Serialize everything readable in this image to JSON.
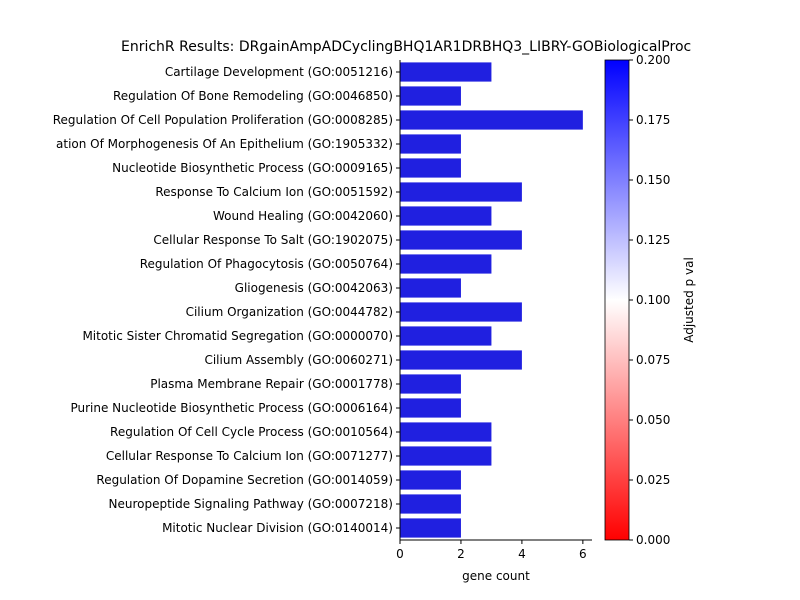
{
  "chart_data": {
    "type": "bar",
    "orientation": "horizontal",
    "title": "EnrichR Results: DRgainAmpADCyclingBHQ1AR1DRBHQ3_LIBRY-GOBiologicalProc",
    "xlabel": "gene count",
    "ylabel": "",
    "xlim": [
      0,
      6.3
    ],
    "x_ticks": [
      "0",
      "2",
      "4",
      "6"
    ],
    "categories": [
      "Cartilage Development (GO:0051216)",
      "Regulation Of Bone Remodeling (GO:0046850)",
      "Regulation Of Cell Population Proliferation (GO:0008285)",
      "ation Of Morphogenesis Of An Epithelium (GO:1905332)",
      "Nucleotide Biosynthetic Process (GO:0009165)",
      "Response To Calcium Ion (GO:0051592)",
      "Wound Healing (GO:0042060)",
      "Cellular Response To Salt (GO:1902075)",
      "Regulation Of Phagocytosis (GO:0050764)",
      "Gliogenesis (GO:0042063)",
      "Cilium Organization (GO:0044782)",
      "Mitotic Sister Chromatid Segregation (GO:0000070)",
      "Cilium Assembly (GO:0060271)",
      "Plasma Membrane Repair (GO:0001778)",
      "Purine Nucleotide Biosynthetic Process (GO:0006164)",
      "Regulation Of Cell Cycle Process (GO:0010564)",
      "Cellular Response To Calcium Ion (GO:0071277)",
      "Regulation Of Dopamine Secretion (GO:0014059)",
      "Neuropeptide Signaling Pathway (GO:0007218)",
      "Mitotic Nuclear Division (GO:0140014)"
    ],
    "values": [
      3,
      2,
      6,
      2,
      2,
      4,
      3,
      4,
      3,
      2,
      4,
      3,
      4,
      2,
      2,
      3,
      3,
      2,
      2,
      2
    ],
    "bar_color": "#2020e0",
    "colorbar": {
      "label": "Adjusted p val",
      "range": [
        0.0,
        0.2
      ],
      "ticks": [
        "0.000",
        "0.025",
        "0.050",
        "0.075",
        "0.100",
        "0.125",
        "0.150",
        "0.175",
        "0.200"
      ],
      "colors": [
        "#ff0000",
        "#ffffff",
        "#0000ff"
      ]
    },
    "grid": false,
    "legend": "none"
  }
}
